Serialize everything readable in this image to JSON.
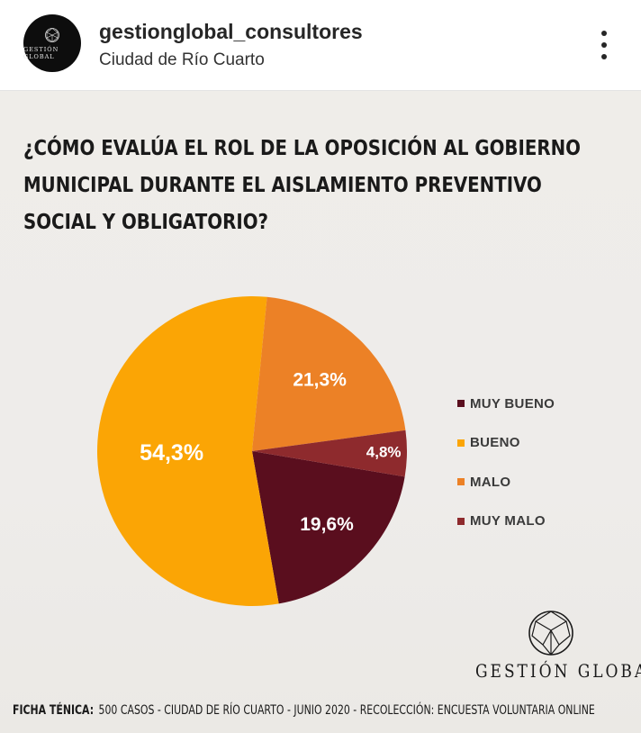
{
  "post": {
    "username": "gestionglobal_consultores",
    "location": "Ciudad de Río Cuarto",
    "avatar_text": "GESTIÓN GLOBAL"
  },
  "icons": {
    "more": "more-vertical-icon",
    "logo": "geodesic-sphere-icon"
  },
  "chart_data": {
    "type": "pie",
    "title": "¿CÓMO EVALÚA EL ROL DE LA OPOSICIÓN AL GOBIERNO MUNICIPAL DURANTE EL AISLAMIENTO PREVENTIVO SOCIAL Y OBLIGATORIO?",
    "title_lines": [
      "¿CÓMO EVALÚA EL ROL DE LA OPOSICIÓN AL GOBIERNO",
      "MUNICIPAL DURANTE EL AISLAMIENTO PREVENTIVO",
      "SOCIAL Y OBLIGATORIO?"
    ],
    "slices": [
      {
        "name": "MUY BUENO",
        "value": 19.6,
        "label": "19,6%",
        "color": "#5a0e1e"
      },
      {
        "name": "BUENO",
        "value": 54.3,
        "label": "54,3%",
        "color": "#fba505"
      },
      {
        "name": "MALO",
        "value": 21.3,
        "label": "21,3%",
        "color": "#ec8126"
      },
      {
        "name": "MUY MALO",
        "value": 4.8,
        "label": "4,8%",
        "color": "#8e2a2d"
      }
    ],
    "legend": [
      "MUY BUENO",
      "BUENO",
      "MALO",
      "MUY MALO"
    ],
    "legend_position": "right"
  },
  "brand": {
    "name": "GESTIÓN GLOBAL"
  },
  "ficha": {
    "label": "FICHA TÉNICA:",
    "text": "500 CASOS - CIUDAD DE RÍO CUARTO - JUNIO 2020 - RECOLECCIÓN: ENCUESTA VOLUNTARIA ONLINE"
  }
}
